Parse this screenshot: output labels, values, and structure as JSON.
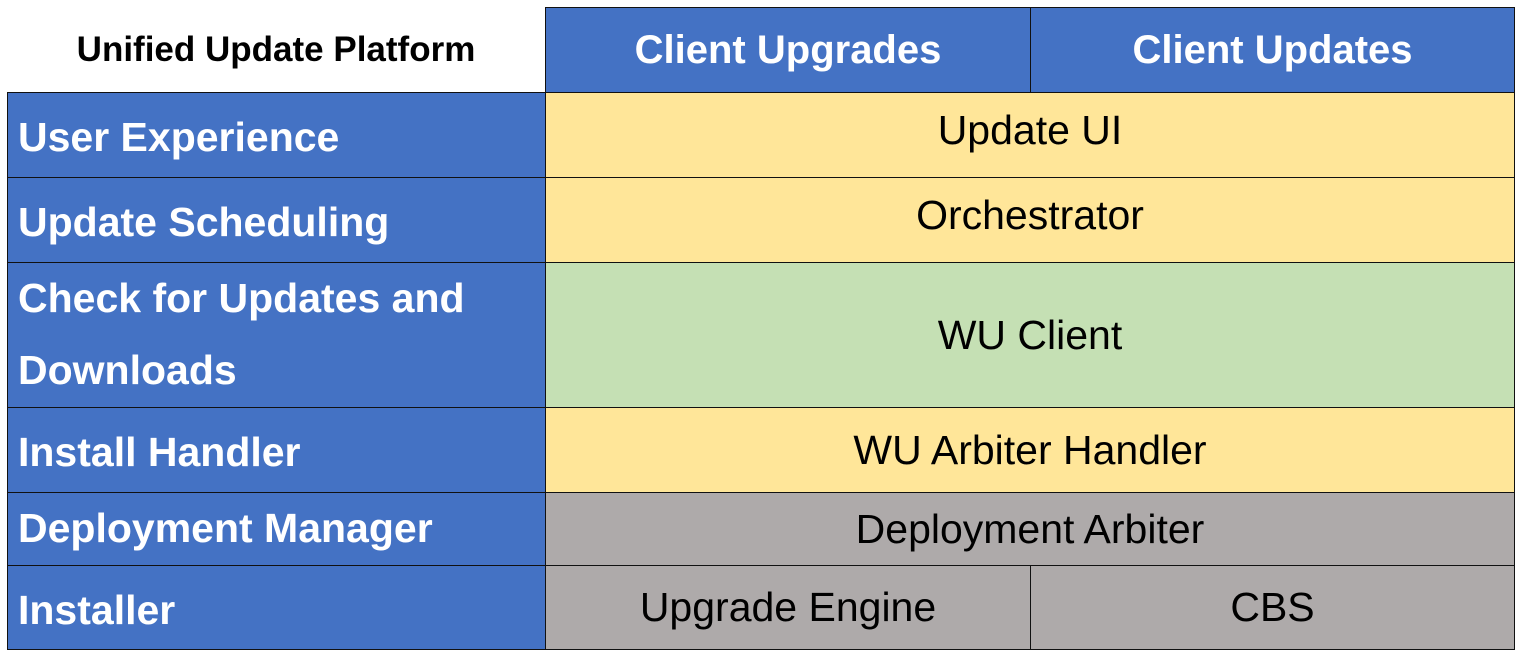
{
  "title": "Unified Update Platform",
  "columns": [
    "Client Upgrades",
    "Client Updates"
  ],
  "rows": [
    {
      "label": "User Experience",
      "cells": [
        "Update UI"
      ]
    },
    {
      "label": "Update Scheduling",
      "cells": [
        "Orchestrator"
      ]
    },
    {
      "label": "Check for Updates and Downloads",
      "cells": [
        "WU Client"
      ]
    },
    {
      "label": "Install Handler",
      "cells": [
        "WU Arbiter Handler"
      ]
    },
    {
      "label": "Deployment Manager",
      "cells": [
        "Deployment Arbiter"
      ]
    },
    {
      "label": "Installer",
      "cells": [
        "Upgrade Engine",
        "CBS"
      ]
    }
  ],
  "colors": {
    "header": "#4472C4",
    "ui_layer": "#FFE699",
    "client_layer": "#C5E0B4",
    "deployment_layer": "#AEAAAA"
  }
}
